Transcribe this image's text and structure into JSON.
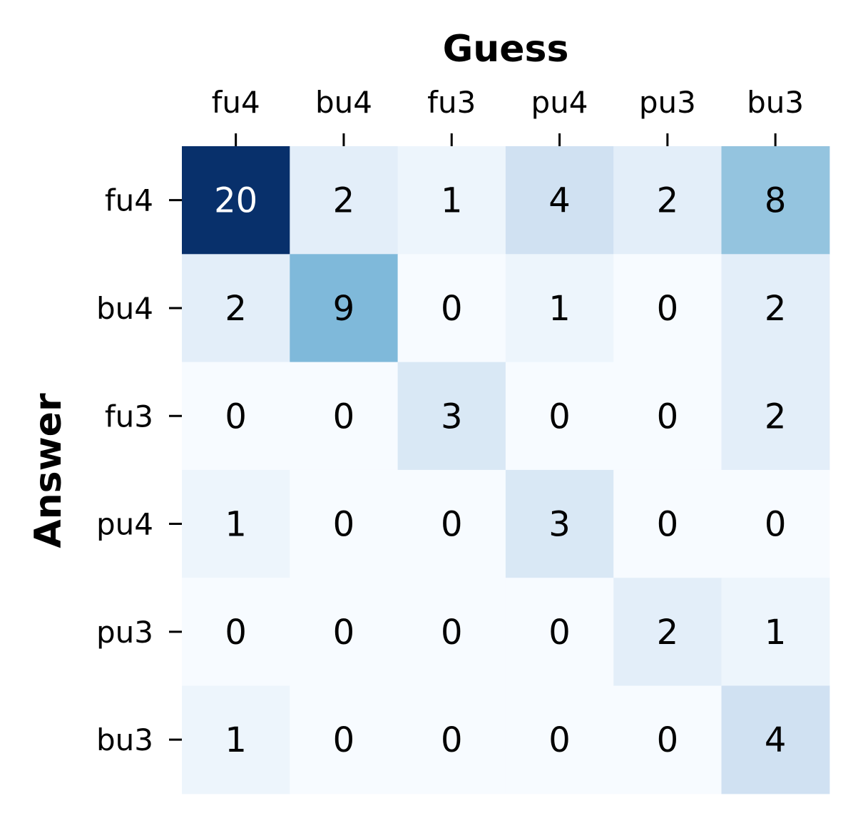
{
  "chart_data": {
    "type": "heatmap",
    "title": "",
    "xlabel": "Guess",
    "ylabel": "Answer",
    "x_categories": [
      "fu4",
      "bu4",
      "fu3",
      "pu4",
      "pu3",
      "bu3"
    ],
    "y_categories": [
      "fu4",
      "bu4",
      "fu3",
      "pu4",
      "pu3",
      "bu3"
    ],
    "values": [
      [
        20,
        2,
        1,
        4,
        2,
        8
      ],
      [
        2,
        9,
        0,
        1,
        0,
        2
      ],
      [
        0,
        0,
        3,
        0,
        0,
        2
      ],
      [
        1,
        0,
        0,
        3,
        0,
        0
      ],
      [
        0,
        0,
        0,
        0,
        2,
        1
      ],
      [
        1,
        0,
        0,
        0,
        0,
        4
      ]
    ],
    "value_range": [
      0,
      20
    ],
    "colormap": "Blues",
    "x_axis_position": "top",
    "colorbar": false,
    "grid": false
  }
}
